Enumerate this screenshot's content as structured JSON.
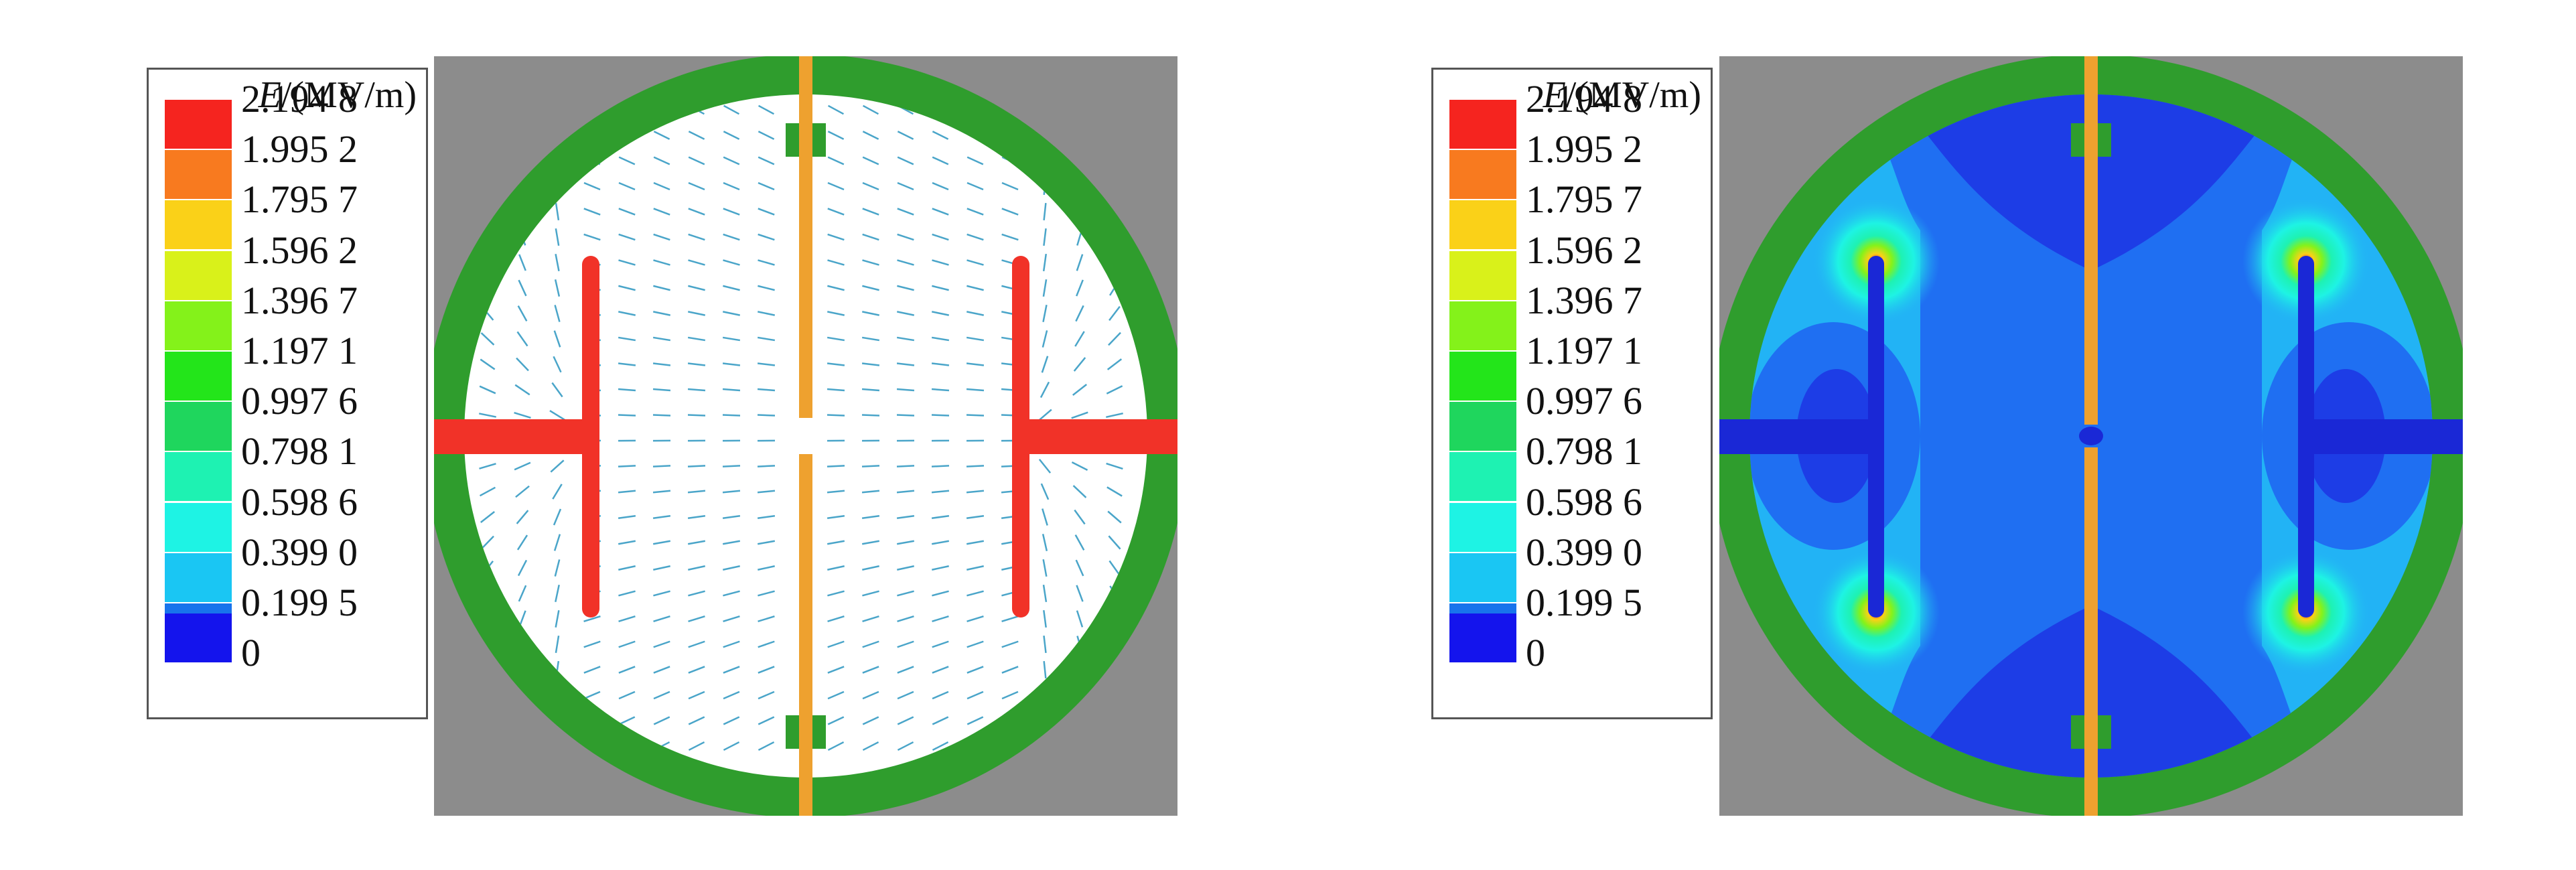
{
  "figure": {
    "legend": {
      "title_symbol": "E",
      "title_unit": "/(MV/m)",
      "ticks": [
        "2.194 8",
        "1.995 2",
        "1.795 7",
        "1.596 2",
        "1.396 7",
        "1.197 1",
        "0.997 6",
        "0.798 1",
        "0.598 6",
        "0.399 0",
        "0.199 5",
        "0"
      ],
      "colors": [
        "#f5241f",
        "#f87a1f",
        "#fad118",
        "#d9f11a",
        "#84f21a",
        "#23e51a",
        "#1fd65d",
        "#1ef2b2",
        "#1ef3e4",
        "#1ac6f3",
        "#1874ec",
        "#1414ed"
      ]
    },
    "palette": {
      "background_gray": "#8c8c8c",
      "ring_green": "#2f9d2d",
      "plate_orange": "#eea12f",
      "electrode_red": "#f13228",
      "electrode_blue": "#1a28d6",
      "field_dark_blue": "#1d3de6",
      "field_mid_blue": "#1f6ff2",
      "field_light_blue": "#22b3f5",
      "arrow_color": "#4aa5c9"
    },
    "panels": [
      {
        "view": "field-vector-arrows"
      },
      {
        "view": "field-magnitude-contour"
      }
    ]
  }
}
